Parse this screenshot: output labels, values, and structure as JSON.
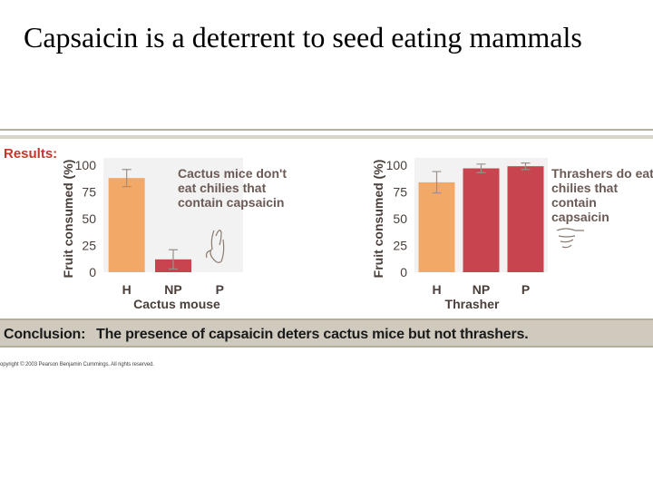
{
  "slide": {
    "title": "Capsaicin is a deterrent to seed eating mammals"
  },
  "figure": {
    "results_label": "Results:",
    "conclusion_label": "Conclusion:",
    "conclusion_text": "The presence of capsaicin deters cactus mice but not thrashers.",
    "copyright": "opyright © 2003 Pearson Benjamin Cummings. All rights reserved.",
    "colors": {
      "H": "#f2a968",
      "NP": "#c8454f",
      "band": "#cfcabd",
      "results_text": "#c0392b"
    }
  },
  "chart_data": [
    {
      "type": "bar",
      "ylabel": "Fruit consumed (%)",
      "xlabel": "Cactus mouse",
      "categories": [
        "H",
        "NP",
        "P"
      ],
      "values": [
        88,
        12,
        0
      ],
      "error": [
        8,
        9,
        0
      ],
      "yticks": [
        0,
        25,
        50,
        75,
        100
      ],
      "ylim": [
        0,
        100
      ],
      "annotation": [
        "Cactus mice don't",
        "eat chilies that",
        "contain capsaicin"
      ]
    },
    {
      "type": "bar",
      "ylabel": "Fruit consumed (%)",
      "xlabel": "Thrasher",
      "categories": [
        "H",
        "NP",
        "P"
      ],
      "values": [
        84,
        97,
        99
      ],
      "error": [
        10,
        4,
        3
      ],
      "yticks": [
        0,
        25,
        50,
        75,
        100
      ],
      "ylim": [
        0,
        100
      ],
      "annotation": [
        "Thrashers do eat",
        "chilies that",
        "contain",
        "capsaicin"
      ]
    }
  ]
}
